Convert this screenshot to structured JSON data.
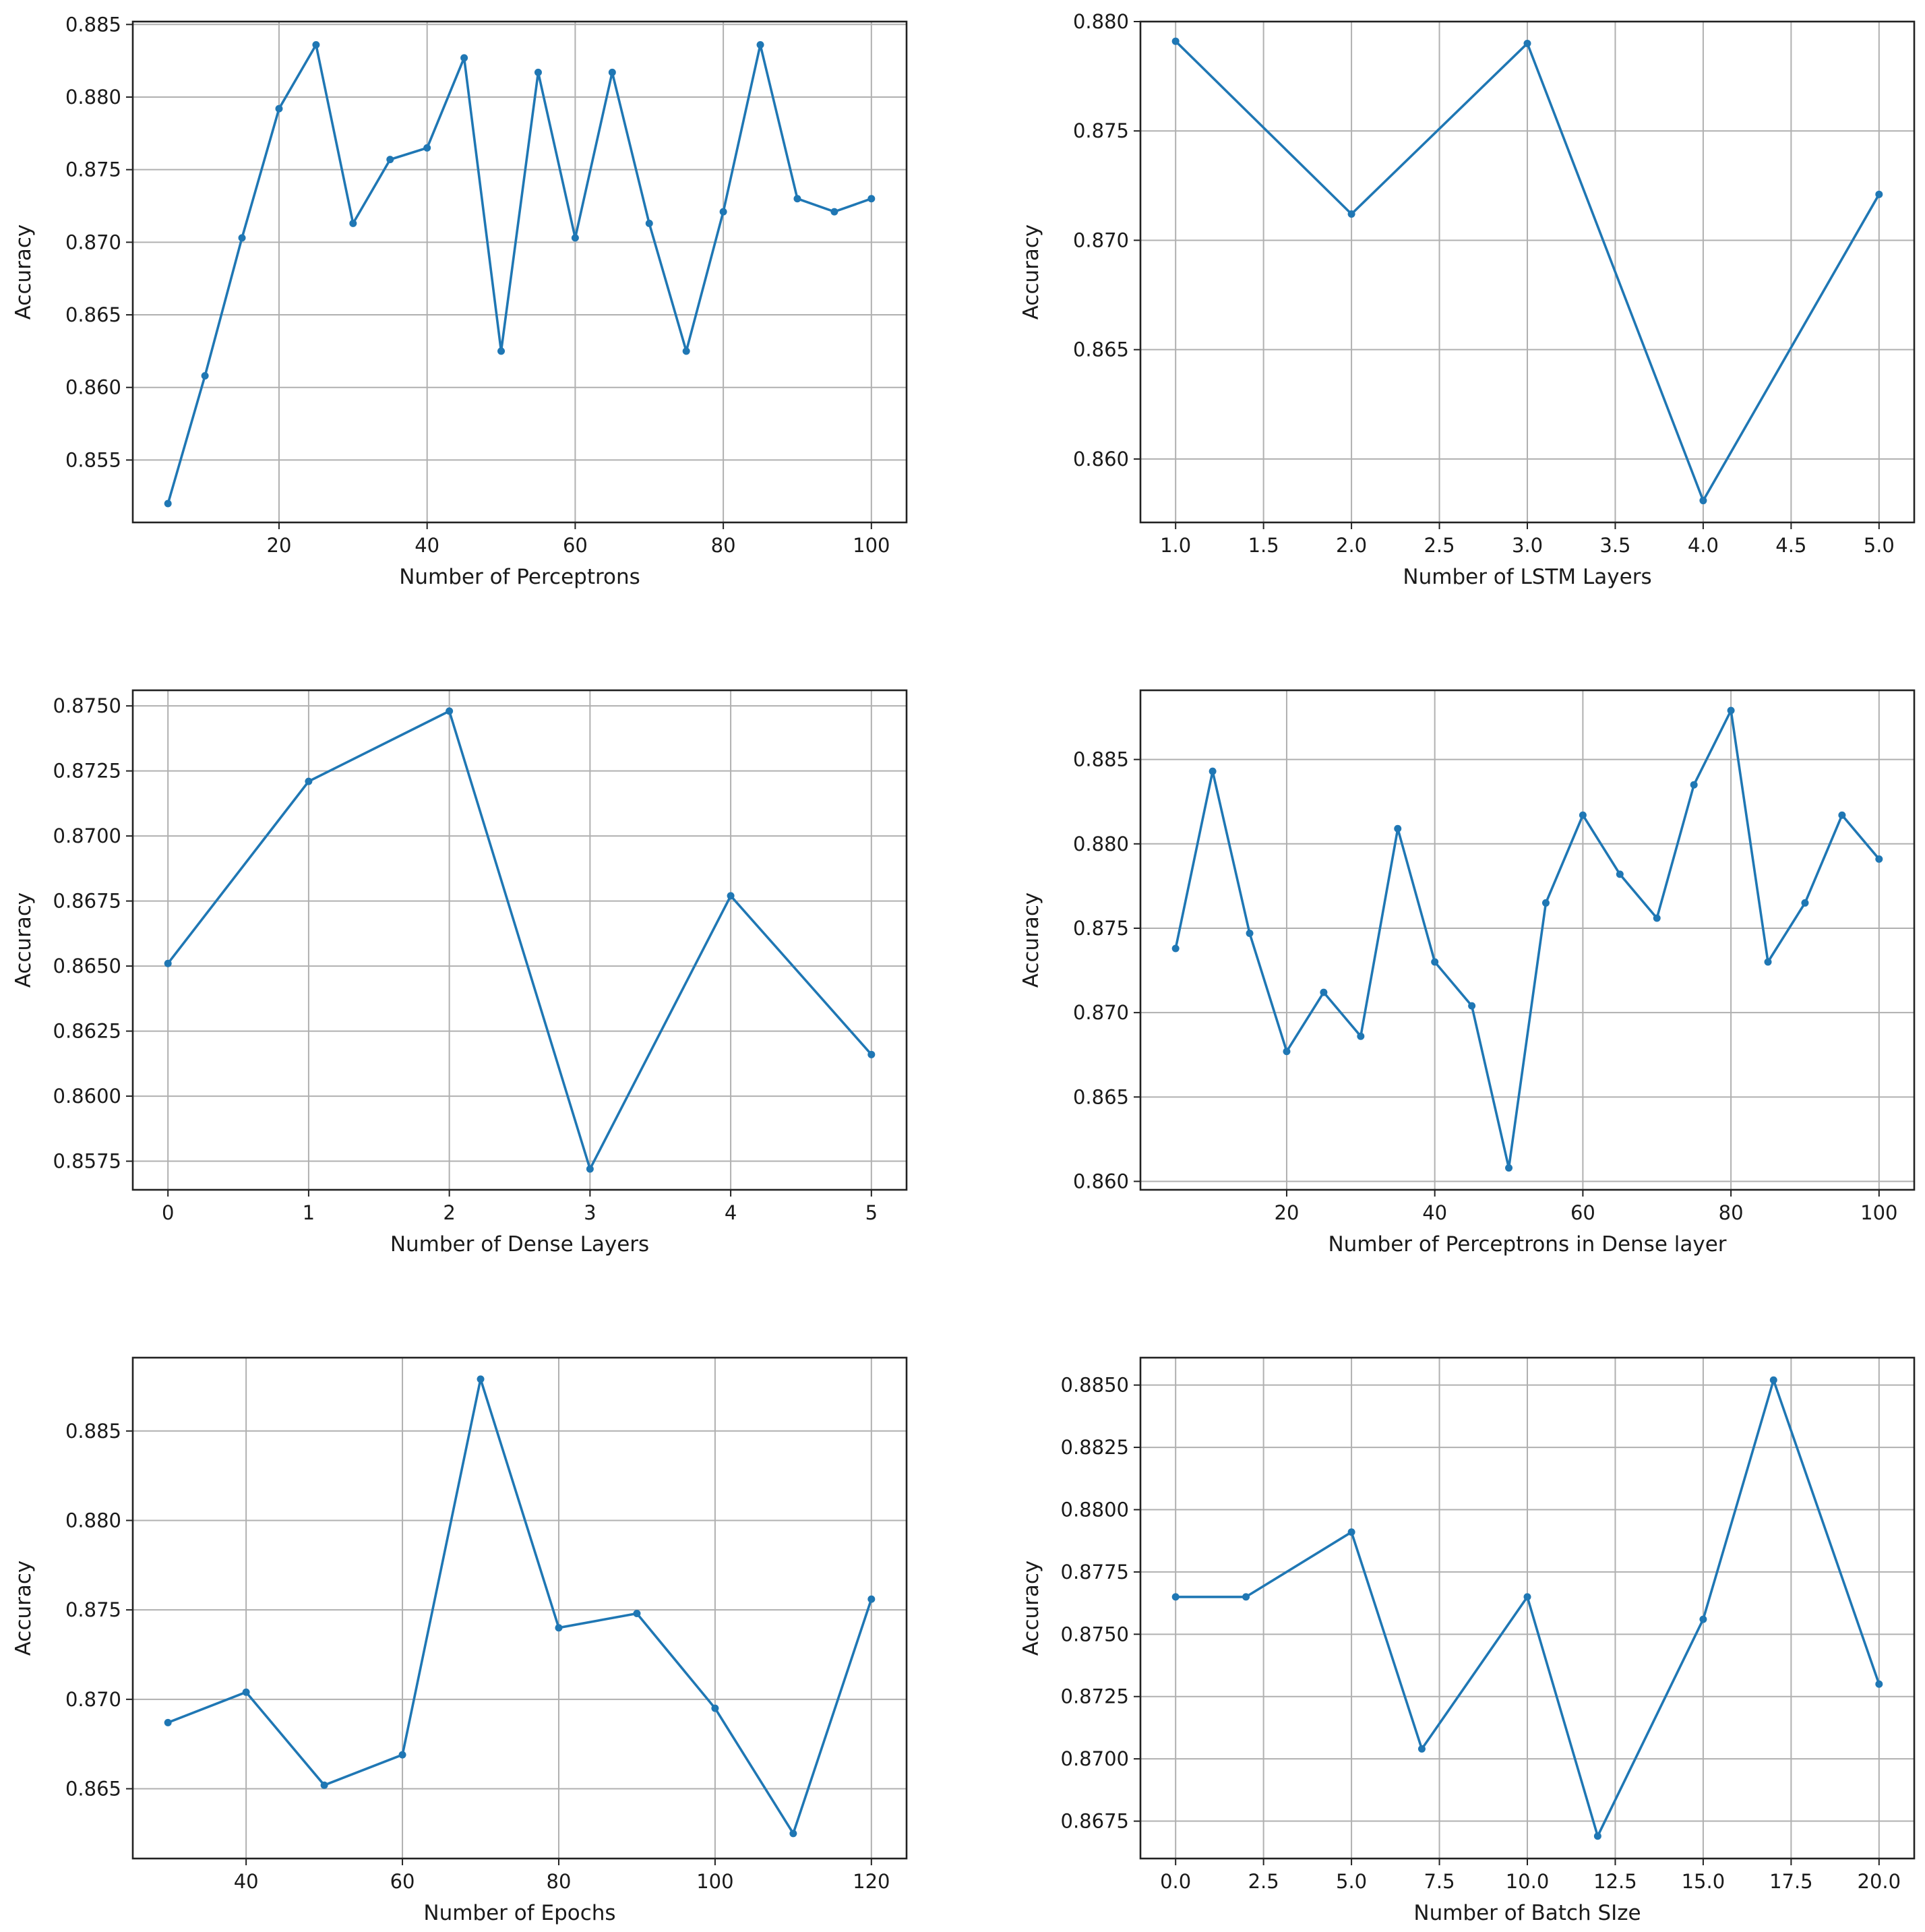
{
  "colors": {
    "series": "#1f77b4",
    "grid": "#b0b0b0",
    "axes": "#222222"
  },
  "chart_data": [
    {
      "type": "line",
      "xlabel": "Number of Perceptrons",
      "ylabel": "Accuracy",
      "x": [
        5,
        10,
        15,
        20,
        25,
        30,
        35,
        40,
        45,
        50,
        55,
        60,
        65,
        70,
        75,
        80,
        85,
        90,
        95,
        100
      ],
      "values": [
        0.852,
        0.8608,
        0.8703,
        0.8792,
        0.8836,
        0.8713,
        0.8757,
        0.8765,
        0.8827,
        0.8625,
        0.8817,
        0.8703,
        0.8817,
        0.8713,
        0.8625,
        0.8721,
        0.8836,
        0.873,
        0.8721,
        0.873
      ],
      "xlim": [
        0.25,
        104.75
      ],
      "ylim": [
        0.8507,
        0.8852
      ],
      "xticks": [
        20,
        40,
        60,
        80,
        100
      ],
      "xtick_labels": [
        "20",
        "40",
        "60",
        "80",
        "100"
      ],
      "yticks": [
        0.855,
        0.86,
        0.865,
        0.87,
        0.875,
        0.88,
        0.885
      ],
      "ytick_labels": [
        "0.855",
        "0.860",
        "0.865",
        "0.870",
        "0.875",
        "0.880",
        "0.885"
      ],
      "grid": true
    },
    {
      "type": "line",
      "xlabel": "Number of LSTM Layers",
      "ylabel": "Accuracy",
      "x": [
        1,
        2,
        3,
        4,
        5
      ],
      "values": [
        0.8791,
        0.8712,
        0.879,
        0.8581,
        0.8721
      ],
      "xlim": [
        0.8,
        5.2
      ],
      "ylim": [
        0.8571,
        0.88
      ],
      "xticks": [
        1.0,
        1.5,
        2.0,
        2.5,
        3.0,
        3.5,
        4.0,
        4.5,
        5.0
      ],
      "xtick_labels": [
        "1.0",
        "1.5",
        "2.0",
        "2.5",
        "3.0",
        "3.5",
        "4.0",
        "4.5",
        "5.0"
      ],
      "yticks": [
        0.86,
        0.865,
        0.87,
        0.875,
        0.88
      ],
      "ytick_labels": [
        "0.860",
        "0.865",
        "0.870",
        "0.875",
        "0.880"
      ],
      "grid": true
    },
    {
      "type": "line",
      "xlabel": "Number of Dense Layers",
      "ylabel": "Accuracy",
      "x": [
        0,
        1,
        2,
        3,
        4,
        5
      ],
      "values": [
        0.8651,
        0.8721,
        0.8748,
        0.8572,
        0.8677,
        0.8616
      ],
      "xlim": [
        -0.25,
        5.25
      ],
      "ylim": [
        0.8564,
        0.8756
      ],
      "xticks": [
        0,
        1,
        2,
        3,
        4,
        5
      ],
      "xtick_labels": [
        "0",
        "1",
        "2",
        "3",
        "4",
        "5"
      ],
      "yticks": [
        0.8575,
        0.86,
        0.8625,
        0.865,
        0.8675,
        0.87,
        0.8725,
        0.875
      ],
      "ytick_labels": [
        "0.8575",
        "0.8600",
        "0.8625",
        "0.8650",
        "0.8675",
        "0.8700",
        "0.8725",
        "0.8750"
      ],
      "grid": true
    },
    {
      "type": "line",
      "xlabel": "Number of Perceptrons in Dense layer",
      "ylabel": "Accuracy",
      "x": [
        5,
        10,
        15,
        20,
        25,
        30,
        35,
        40,
        45,
        50,
        55,
        60,
        65,
        70,
        75,
        80,
        85,
        90,
        95,
        100
      ],
      "values": [
        0.8738,
        0.8843,
        0.8747,
        0.8677,
        0.8712,
        0.8686,
        0.8809,
        0.873,
        0.8704,
        0.8608,
        0.8765,
        0.8817,
        0.8782,
        0.8756,
        0.8835,
        0.8879,
        0.873,
        0.8765,
        0.8817,
        0.8791
      ],
      "xlim": [
        0.25,
        104.75
      ],
      "ylim": [
        0.8595,
        0.8891
      ],
      "xticks": [
        20,
        40,
        60,
        80,
        100
      ],
      "xtick_labels": [
        "20",
        "40",
        "60",
        "80",
        "100"
      ],
      "yticks": [
        0.86,
        0.865,
        0.87,
        0.875,
        0.88,
        0.885
      ],
      "ytick_labels": [
        "0.860",
        "0.865",
        "0.870",
        "0.875",
        "0.880",
        "0.885"
      ],
      "grid": true
    },
    {
      "type": "line",
      "xlabel": "Number of Epochs",
      "ylabel": "Accuracy",
      "x": [
        30,
        40,
        50,
        60,
        70,
        80,
        90,
        100,
        110,
        120
      ],
      "values": [
        0.8687,
        0.8704,
        0.8652,
        0.8669,
        0.8879,
        0.874,
        0.8748,
        0.8695,
        0.8625,
        0.8756
      ],
      "xlim": [
        25.5,
        124.5
      ],
      "ylim": [
        0.8611,
        0.8891
      ],
      "xticks": [
        40,
        60,
        80,
        100,
        120
      ],
      "xtick_labels": [
        "40",
        "60",
        "80",
        "100",
        "120"
      ],
      "yticks": [
        0.865,
        0.87,
        0.875,
        0.88,
        0.885
      ],
      "ytick_labels": [
        "0.865",
        "0.870",
        "0.875",
        "0.880",
        "0.885"
      ],
      "grid": true
    },
    {
      "type": "line",
      "xlabel": "Number of Batch SIze",
      "ylabel": "Accuracy",
      "x": [
        0,
        2,
        5,
        7,
        10,
        12,
        15,
        17,
        20
      ],
      "values": [
        0.8765,
        0.8765,
        0.8791,
        0.8704,
        0.8765,
        0.8669,
        0.8756,
        0.8852,
        0.873
      ],
      "xlim": [
        -1,
        21
      ],
      "ylim": [
        0.866,
        0.8861
      ],
      "xticks": [
        0,
        2.5,
        5,
        7.5,
        10,
        12.5,
        15,
        17.5,
        20
      ],
      "xtick_labels": [
        "0.0",
        "2.5",
        "5.0",
        "7.5",
        "10.0",
        "12.5",
        "15.0",
        "17.5",
        "20.0"
      ],
      "yticks": [
        0.8675,
        0.87,
        0.8725,
        0.875,
        0.8775,
        0.88,
        0.8825,
        0.885
      ],
      "ytick_labels": [
        "0.8675",
        "0.8700",
        "0.8725",
        "0.8750",
        "0.8775",
        "0.8800",
        "0.8825",
        "0.8850"
      ],
      "grid": true
    }
  ]
}
